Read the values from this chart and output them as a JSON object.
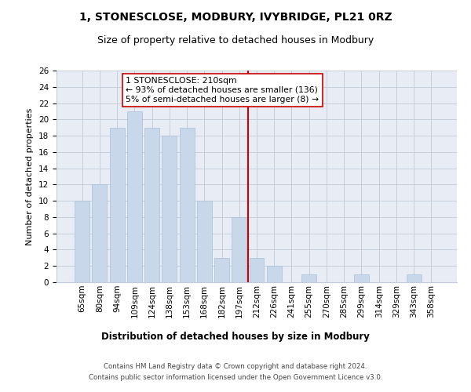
{
  "title": "1, STONESCLOSE, MODBURY, IVYBRIDGE, PL21 0RZ",
  "subtitle": "Size of property relative to detached houses in Modbury",
  "xlabel": "Distribution of detached houses by size in Modbury",
  "ylabel": "Number of detached properties",
  "categories": [
    "65sqm",
    "80sqm",
    "94sqm",
    "109sqm",
    "124sqm",
    "138sqm",
    "153sqm",
    "168sqm",
    "182sqm",
    "197sqm",
    "212sqm",
    "226sqm",
    "241sqm",
    "255sqm",
    "270sqm",
    "285sqm",
    "299sqm",
    "314sqm",
    "329sqm",
    "343sqm",
    "358sqm"
  ],
  "values": [
    10,
    12,
    19,
    21,
    19,
    18,
    19,
    10,
    3,
    8,
    3,
    2,
    0,
    1,
    0,
    0,
    1,
    0,
    0,
    1,
    0
  ],
  "bar_color": "#c8d8ea",
  "bar_edgecolor": "#aabfd4",
  "vline_x": 9.5,
  "vline_color": "#cc0000",
  "annotation_text": "1 STONESCLOSE: 210sqm\n← 93% of detached houses are smaller (136)\n5% of semi-detached houses are larger (8) →",
  "annotation_box_color": "#ffffff",
  "annotation_box_edgecolor": "#cc0000",
  "ylim": [
    0,
    26
  ],
  "yticks": [
    0,
    2,
    4,
    6,
    8,
    10,
    12,
    14,
    16,
    18,
    20,
    22,
    24,
    26
  ],
  "grid_color": "#c0cad8",
  "background_color": "#e8edf5",
  "footer_line1": "Contains HM Land Registry data © Crown copyright and database right 2024.",
  "footer_line2": "Contains public sector information licensed under the Open Government Licence v3.0.",
  "title_fontsize": 10,
  "subtitle_fontsize": 9,
  "xlabel_fontsize": 8.5,
  "ylabel_fontsize": 8,
  "tick_fontsize": 7.5,
  "annotation_fontsize": 7.8,
  "footer_fontsize": 6.2
}
